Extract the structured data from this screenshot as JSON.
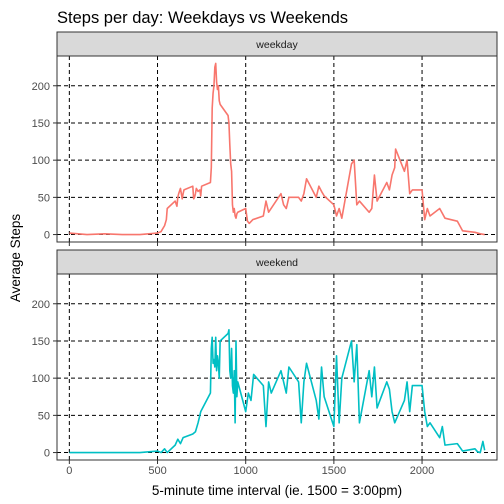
{
  "chart_data": {
    "type": "line",
    "title": "Steps per day: Weekdays vs Weekends",
    "xlabel": "5-minute time interval (ie. 1500 = 3:00pm)",
    "ylabel": "Average Steps",
    "xlim": [
      -70,
      2425
    ],
    "ylim": [
      -10,
      240
    ],
    "x_ticks": [
      0,
      500,
      1000,
      1500,
      2000
    ],
    "y_ticks": [
      0,
      50,
      100,
      150,
      200
    ],
    "grid": true,
    "legend": "none",
    "panels": [
      {
        "name": "weekday",
        "color": "#F8766D",
        "x": [
          0,
          100,
          200,
          300,
          400,
          500,
          520,
          540,
          550,
          555,
          600,
          610,
          615,
          620,
          630,
          640,
          645,
          650,
          700,
          705,
          710,
          715,
          720,
          730,
          740,
          745,
          750,
          800,
          805,
          810,
          815,
          820,
          825,
          830,
          835,
          840,
          845,
          850,
          855,
          900,
          905,
          910,
          915,
          920,
          925,
          930,
          935,
          940,
          945,
          950,
          955,
          1000,
          1010,
          1020,
          1040,
          1100,
          1115,
          1130,
          1200,
          1215,
          1230,
          1245,
          1300,
          1315,
          1330,
          1345,
          1400,
          1415,
          1430,
          1445,
          1500,
          1515,
          1530,
          1545,
          1600,
          1615,
          1630,
          1645,
          1700,
          1715,
          1730,
          1745,
          1800,
          1815,
          1830,
          1845,
          1850,
          1900,
          1915,
          1930,
          1945,
          2000,
          2015,
          2030,
          2045,
          2100,
          2130,
          2200,
          2230,
          2300,
          2330,
          2355
        ],
        "y": [
          2,
          0,
          1,
          0,
          0,
          2,
          4,
          12,
          20,
          35,
          45,
          38,
          50,
          55,
          62,
          48,
          55,
          60,
          65,
          48,
          50,
          55,
          62,
          58,
          60,
          52,
          65,
          70,
          90,
          170,
          190,
          200,
          225,
          230,
          205,
          195,
          200,
          180,
          175,
          160,
          150,
          120,
          95,
          85,
          40,
          30,
          35,
          25,
          22,
          28,
          30,
          35,
          18,
          15,
          20,
          25,
          45,
          30,
          55,
          40,
          35,
          50,
          50,
          45,
          55,
          75,
          50,
          65,
          58,
          52,
          40,
          25,
          35,
          22,
          95,
          100,
          40,
          45,
          30,
          35,
          80,
          45,
          70,
          60,
          80,
          90,
          115,
          85,
          100,
          55,
          60,
          60,
          20,
          35,
          25,
          35,
          22,
          18,
          5,
          3,
          1,
          0
        ]
      },
      {
        "name": "weekend",
        "color": "#00BFC4",
        "x": [
          0,
          100,
          200,
          300,
          400,
          500,
          520,
          540,
          555,
          600,
          615,
          630,
          645,
          700,
          715,
          730,
          745,
          800,
          805,
          810,
          815,
          820,
          825,
          830,
          835,
          840,
          845,
          850,
          855,
          900,
          905,
          910,
          915,
          920,
          925,
          930,
          935,
          940,
          945,
          950,
          955,
          1000,
          1015,
          1030,
          1045,
          1100,
          1115,
          1130,
          1145,
          1200,
          1215,
          1230,
          1245,
          1300,
          1315,
          1330,
          1345,
          1400,
          1415,
          1430,
          1445,
          1500,
          1515,
          1530,
          1545,
          1600,
          1615,
          1630,
          1645,
          1700,
          1715,
          1730,
          1745,
          1800,
          1815,
          1830,
          1845,
          1900,
          1915,
          1930,
          1945,
          2000,
          2015,
          2030,
          2045,
          2100,
          2115,
          2130,
          2200,
          2230,
          2300,
          2315,
          2330,
          2345,
          2355
        ],
        "y": [
          0,
          0,
          0,
          0,
          0,
          2,
          0,
          5,
          0,
          10,
          18,
          12,
          20,
          25,
          28,
          40,
          55,
          80,
          140,
          155,
          120,
          125,
          115,
          155,
          110,
          130,
          120,
          100,
          150,
          160,
          165,
          110,
          100,
          140,
          90,
          80,
          110,
          40,
          150,
          75,
          95,
          55,
          80,
          70,
          105,
          90,
          35,
          95,
          80,
          110,
          95,
          80,
          115,
          95,
          40,
          95,
          120,
          70,
          45,
          115,
          75,
          35,
          130,
          40,
          100,
          150,
          95,
          145,
          40,
          110,
          75,
          115,
          60,
          95,
          85,
          55,
          40,
          70,
          95,
          55,
          90,
          90,
          55,
          35,
          40,
          20,
          35,
          10,
          12,
          2,
          5,
          1,
          0,
          15,
          3
        ]
      }
    ]
  }
}
